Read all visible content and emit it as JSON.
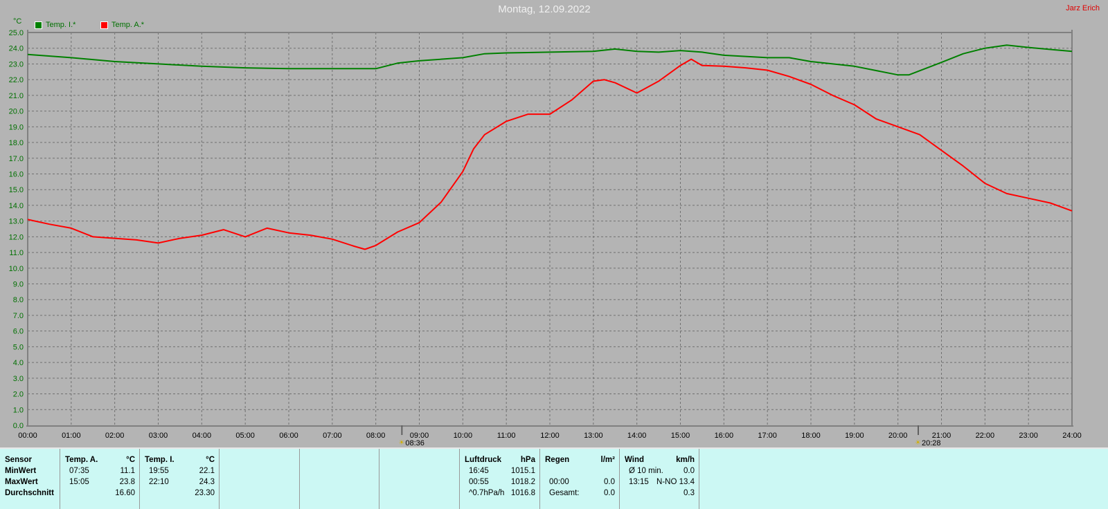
{
  "header": {
    "title": "Montag, 12.09.2022",
    "author": "Jarz Erich"
  },
  "chart_data": {
    "type": "line",
    "title": "Montag, 12.09.2022",
    "ylabel": "°C",
    "ylim": [
      0,
      25
    ],
    "ytick_step": 1,
    "xlim": [
      "00:00",
      "24:00"
    ],
    "x_ticks": [
      "00:00",
      "01:00",
      "02:00",
      "03:00",
      "04:00",
      "05:00",
      "06:00",
      "07:00",
      "08:00",
      "09:00",
      "10:00",
      "11:00",
      "12:00",
      "13:00",
      "14:00",
      "15:00",
      "16:00",
      "17:00",
      "18:00",
      "19:00",
      "20:00",
      "21:00",
      "22:00",
      "23:00",
      "24:00"
    ],
    "grid": true,
    "legend_placement": "top-left",
    "markers": [
      {
        "icon": "sunrise-icon",
        "label": "08:36"
      },
      {
        "icon": "sunset-icon",
        "label": "20:28"
      }
    ],
    "series": [
      {
        "name": "Temp. I.*",
        "color": "#008000",
        "x": [
          "00:00",
          "01:00",
          "02:00",
          "03:00",
          "04:00",
          "05:00",
          "06:00",
          "07:00",
          "08:00",
          "08:30",
          "09:00",
          "10:00",
          "10:30",
          "11:00",
          "12:00",
          "13:00",
          "13:30",
          "14:00",
          "14:30",
          "15:00",
          "15:30",
          "16:00",
          "17:00",
          "17:30",
          "18:00",
          "19:00",
          "20:00",
          "20:15",
          "21:00",
          "21:30",
          "22:00",
          "22:30",
          "23:00",
          "24:00"
        ],
        "y": [
          23.6,
          23.4,
          23.15,
          23.0,
          22.85,
          22.75,
          22.7,
          22.7,
          22.7,
          23.05,
          23.2,
          23.4,
          23.65,
          23.7,
          23.75,
          23.8,
          23.95,
          23.8,
          23.75,
          23.85,
          23.75,
          23.55,
          23.4,
          23.4,
          23.15,
          22.85,
          22.3,
          22.3,
          23.1,
          23.65,
          24.0,
          24.2,
          24.05,
          23.8
        ]
      },
      {
        "name": "Temp. A.*",
        "color": "#ff0000",
        "x": [
          "00:00",
          "00:30",
          "01:00",
          "01:30",
          "02:00",
          "02:30",
          "03:00",
          "03:30",
          "04:00",
          "04:30",
          "05:00",
          "05:30",
          "06:00",
          "06:30",
          "07:00",
          "07:30",
          "07:45",
          "08:00",
          "08:30",
          "09:00",
          "09:30",
          "10:00",
          "10:15",
          "10:30",
          "11:00",
          "11:30",
          "12:00",
          "12:30",
          "13:00",
          "13:15",
          "13:30",
          "14:00",
          "14:30",
          "15:00",
          "15:15",
          "15:30",
          "16:00",
          "16:30",
          "17:00",
          "17:30",
          "18:00",
          "18:30",
          "19:00",
          "19:30",
          "20:00",
          "20:30",
          "21:00",
          "21:30",
          "22:00",
          "22:30",
          "23:00",
          "23:30",
          "24:00"
        ],
        "y": [
          13.1,
          12.8,
          12.55,
          12.0,
          11.9,
          11.8,
          11.6,
          11.9,
          12.1,
          12.45,
          12.0,
          12.55,
          12.25,
          12.1,
          11.85,
          11.4,
          11.2,
          11.45,
          12.3,
          12.9,
          14.2,
          16.15,
          17.6,
          18.5,
          19.35,
          19.8,
          19.8,
          20.7,
          21.9,
          22.0,
          21.8,
          21.15,
          21.9,
          22.9,
          23.3,
          22.9,
          22.85,
          22.75,
          22.6,
          22.2,
          21.7,
          21.0,
          20.4,
          19.5,
          19.0,
          18.5,
          17.5,
          16.5,
          15.4,
          14.75,
          14.45,
          14.15,
          13.65
        ]
      }
    ]
  },
  "table": {
    "columns": [
      {
        "rows": [
          [
            "Sensor",
            ""
          ],
          [
            "MinWert",
            ""
          ],
          [
            "MaxWert",
            ""
          ],
          [
            "Durchschnitt",
            ""
          ]
        ]
      },
      {
        "rows": [
          [
            "Temp. A.",
            "°C"
          ],
          [
            "07:35",
            "11.1"
          ],
          [
            "15:05",
            "23.8"
          ],
          [
            "",
            "16.60"
          ]
        ]
      },
      {
        "rows": [
          [
            "Temp. I.",
            "°C"
          ],
          [
            "19:55",
            "22.1"
          ],
          [
            "22:10",
            "24.3"
          ],
          [
            "",
            "23.30"
          ]
        ]
      },
      {
        "rows": []
      },
      {
        "rows": []
      },
      {
        "rows": []
      },
      {
        "rows": [
          [
            "Luftdruck",
            "hPa"
          ],
          [
            "16:45",
            "1015.1"
          ],
          [
            "00:55",
            "1018.2"
          ],
          [
            "^0.7hPa/h",
            "1016.8"
          ]
        ]
      },
      {
        "rows": [
          [
            "Regen",
            "l/m²"
          ],
          [
            "",
            ""
          ],
          [
            "00:00",
            "0.0"
          ],
          [
            "Gesamt:",
            "0.0"
          ]
        ]
      },
      {
        "rows": [
          [
            "Wind",
            "km/h"
          ],
          [
            "Ø 10 min.",
            "0.0"
          ],
          [
            "13:15",
            "N-NO 13.4"
          ],
          [
            "",
            "0.3"
          ]
        ]
      }
    ]
  }
}
